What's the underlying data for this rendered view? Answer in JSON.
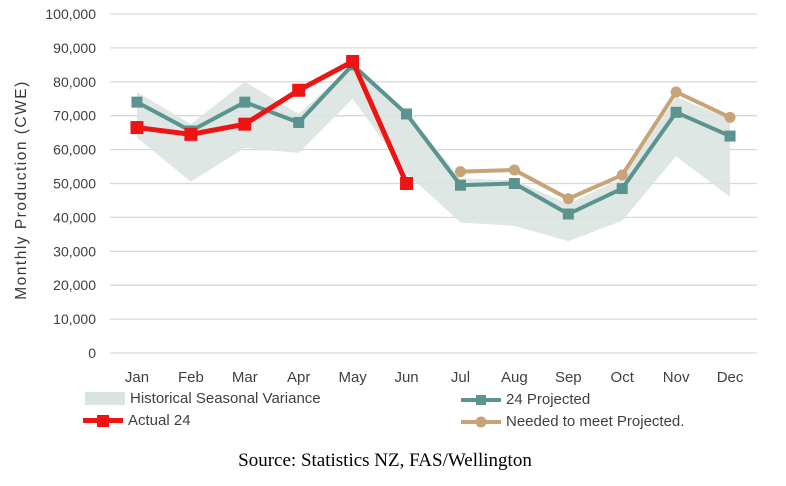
{
  "colors": {
    "projected": "#5b938f",
    "actual": "#ee1414",
    "needed": "#c7a478",
    "band": "#d9e4e0",
    "gridline": "#d9d9d9",
    "tick_text": "#404040",
    "axis_title_text": "#3a3a3a",
    "legend_text": "#3f3f3f"
  },
  "chart_data": {
    "type": "line",
    "title": "",
    "xlabel": "",
    "ylabel": "Monthly Production (CWE)",
    "ylim": [
      0,
      100000
    ],
    "ytick_interval": 10000,
    "grid": "horizontal",
    "legend_position": "bottom",
    "categories": [
      "Jan",
      "Feb",
      "Mar",
      "Apr",
      "May",
      "Jun",
      "Jul",
      "Aug",
      "Sep",
      "Oct",
      "Nov",
      "Dec"
    ],
    "band": {
      "name": "Historical Seasonal Variance",
      "color": "#d9e4e0",
      "upper": [
        77000,
        67500,
        80000,
        70500,
        85000,
        71000,
        51500,
        51000,
        44000,
        51500,
        75500,
        69000
      ],
      "lower": [
        63500,
        50500,
        60500,
        59000,
        75000,
        53000,
        38500,
        37500,
        33000,
        39000,
        58000,
        46000
      ]
    },
    "series": [
      {
        "name": "24 Projected",
        "color": "#5b938f",
        "marker": "square",
        "values": [
          74000,
          65500,
          74000,
          68000,
          85000,
          70500,
          49500,
          50000,
          41000,
          48500,
          71000,
          64000
        ]
      },
      {
        "name": "Actual 24",
        "color": "#ee1414",
        "marker": "square",
        "values": [
          66500,
          64500,
          67500,
          77500,
          86000,
          50000,
          null,
          null,
          null,
          null,
          null,
          null
        ]
      },
      {
        "name": "Needed to meet Projected.",
        "color": "#c7a478",
        "marker": "circle",
        "values": [
          null,
          null,
          null,
          null,
          null,
          null,
          53500,
          54000,
          45500,
          52500,
          77000,
          69500
        ]
      }
    ]
  },
  "legend": {
    "items": [
      {
        "label": "Historical Seasonal Variance"
      },
      {
        "label": "24 Projected"
      },
      {
        "label": "Actual 24"
      },
      {
        "label": "Needed to meet Projected."
      }
    ]
  },
  "source_note": "Source: Statistics NZ, FAS/Wellington"
}
